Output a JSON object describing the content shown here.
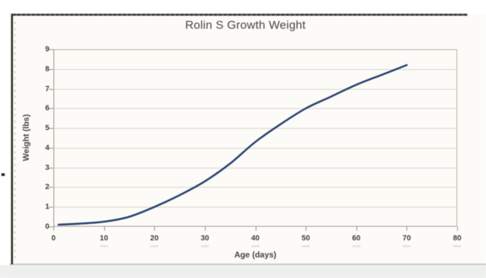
{
  "page": {
    "kind": "scanned textbook chart figure"
  },
  "chart_data": {
    "type": "line",
    "title": "Rolin S Growth Weight",
    "xlabel": "Age (days)",
    "ylabel": "Weight (lbs)",
    "xlim": [
      0,
      80
    ],
    "ylim": [
      0,
      9
    ],
    "xticks": [
      0,
      10,
      20,
      30,
      40,
      50,
      60,
      70,
      80
    ],
    "yticks": [
      0,
      1,
      2,
      3,
      4,
      5,
      6,
      7,
      8,
      9
    ],
    "grid": "horizontal",
    "legend": "none",
    "series": [
      {
        "name": "Weight",
        "color": "#2a4370",
        "x": [
          1,
          5,
          10,
          15,
          20,
          25,
          30,
          35,
          40,
          45,
          50,
          55,
          60,
          65,
          70
        ],
        "y": [
          0.1,
          0.15,
          0.25,
          0.5,
          1.0,
          1.6,
          2.3,
          3.2,
          4.3,
          5.2,
          6.0,
          6.6,
          7.2,
          7.7,
          8.2
        ]
      }
    ]
  },
  "colors": {
    "curve": "#2a4370",
    "gridline": "#d7d0c3",
    "plot_border": "#b1a99b",
    "axis_line": "#8d887e",
    "tick_text": "#403e3a",
    "title_text": "#49463f",
    "scan_border": "#3c3833"
  }
}
